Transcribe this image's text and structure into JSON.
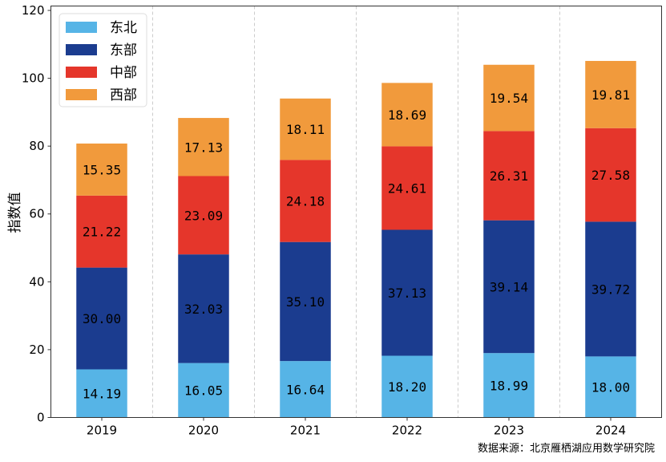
{
  "chart_data": {
    "type": "bar",
    "stacked": true,
    "categories": [
      "2019",
      "2020",
      "2021",
      "2022",
      "2023",
      "2024"
    ],
    "series": [
      {
        "name": "东北",
        "color": "#56b4e6",
        "values": [
          14.19,
          16.05,
          16.64,
          18.2,
          18.99,
          18.0
        ]
      },
      {
        "name": "东部",
        "color": "#1b3c8f",
        "values": [
          30.0,
          32.03,
          35.1,
          37.13,
          39.14,
          39.72
        ]
      },
      {
        "name": "中部",
        "color": "#e5362b",
        "values": [
          21.22,
          23.09,
          24.18,
          24.61,
          26.31,
          27.58
        ]
      },
      {
        "name": "西部",
        "color": "#f19a3c",
        "values": [
          15.35,
          17.13,
          18.11,
          18.69,
          19.54,
          19.81
        ]
      }
    ],
    "data_labels": [
      [
        "14.19",
        "16.05",
        "16.64",
        "18.20",
        "18.99",
        "18.00"
      ],
      [
        "30.00",
        "32.03",
        "35.10",
        "37.13",
        "39.14",
        "39.72"
      ],
      [
        "21.22",
        "23.09",
        "24.18",
        "24.61",
        "26.31",
        "27.58"
      ],
      [
        "15.35",
        "17.13",
        "18.11",
        "18.69",
        "19.54",
        "19.81"
      ]
    ],
    "title": "",
    "xlabel": "",
    "ylabel": "指数值",
    "ylim": [
      0,
      121.3
    ],
    "yticks": [
      "0",
      "20",
      "40",
      "60",
      "80",
      "100",
      "120"
    ],
    "grid": "vertical dashed between categories",
    "legend_position": "top-left"
  },
  "source_note": "数据来源：北京雁栖湖应用数学研究院"
}
